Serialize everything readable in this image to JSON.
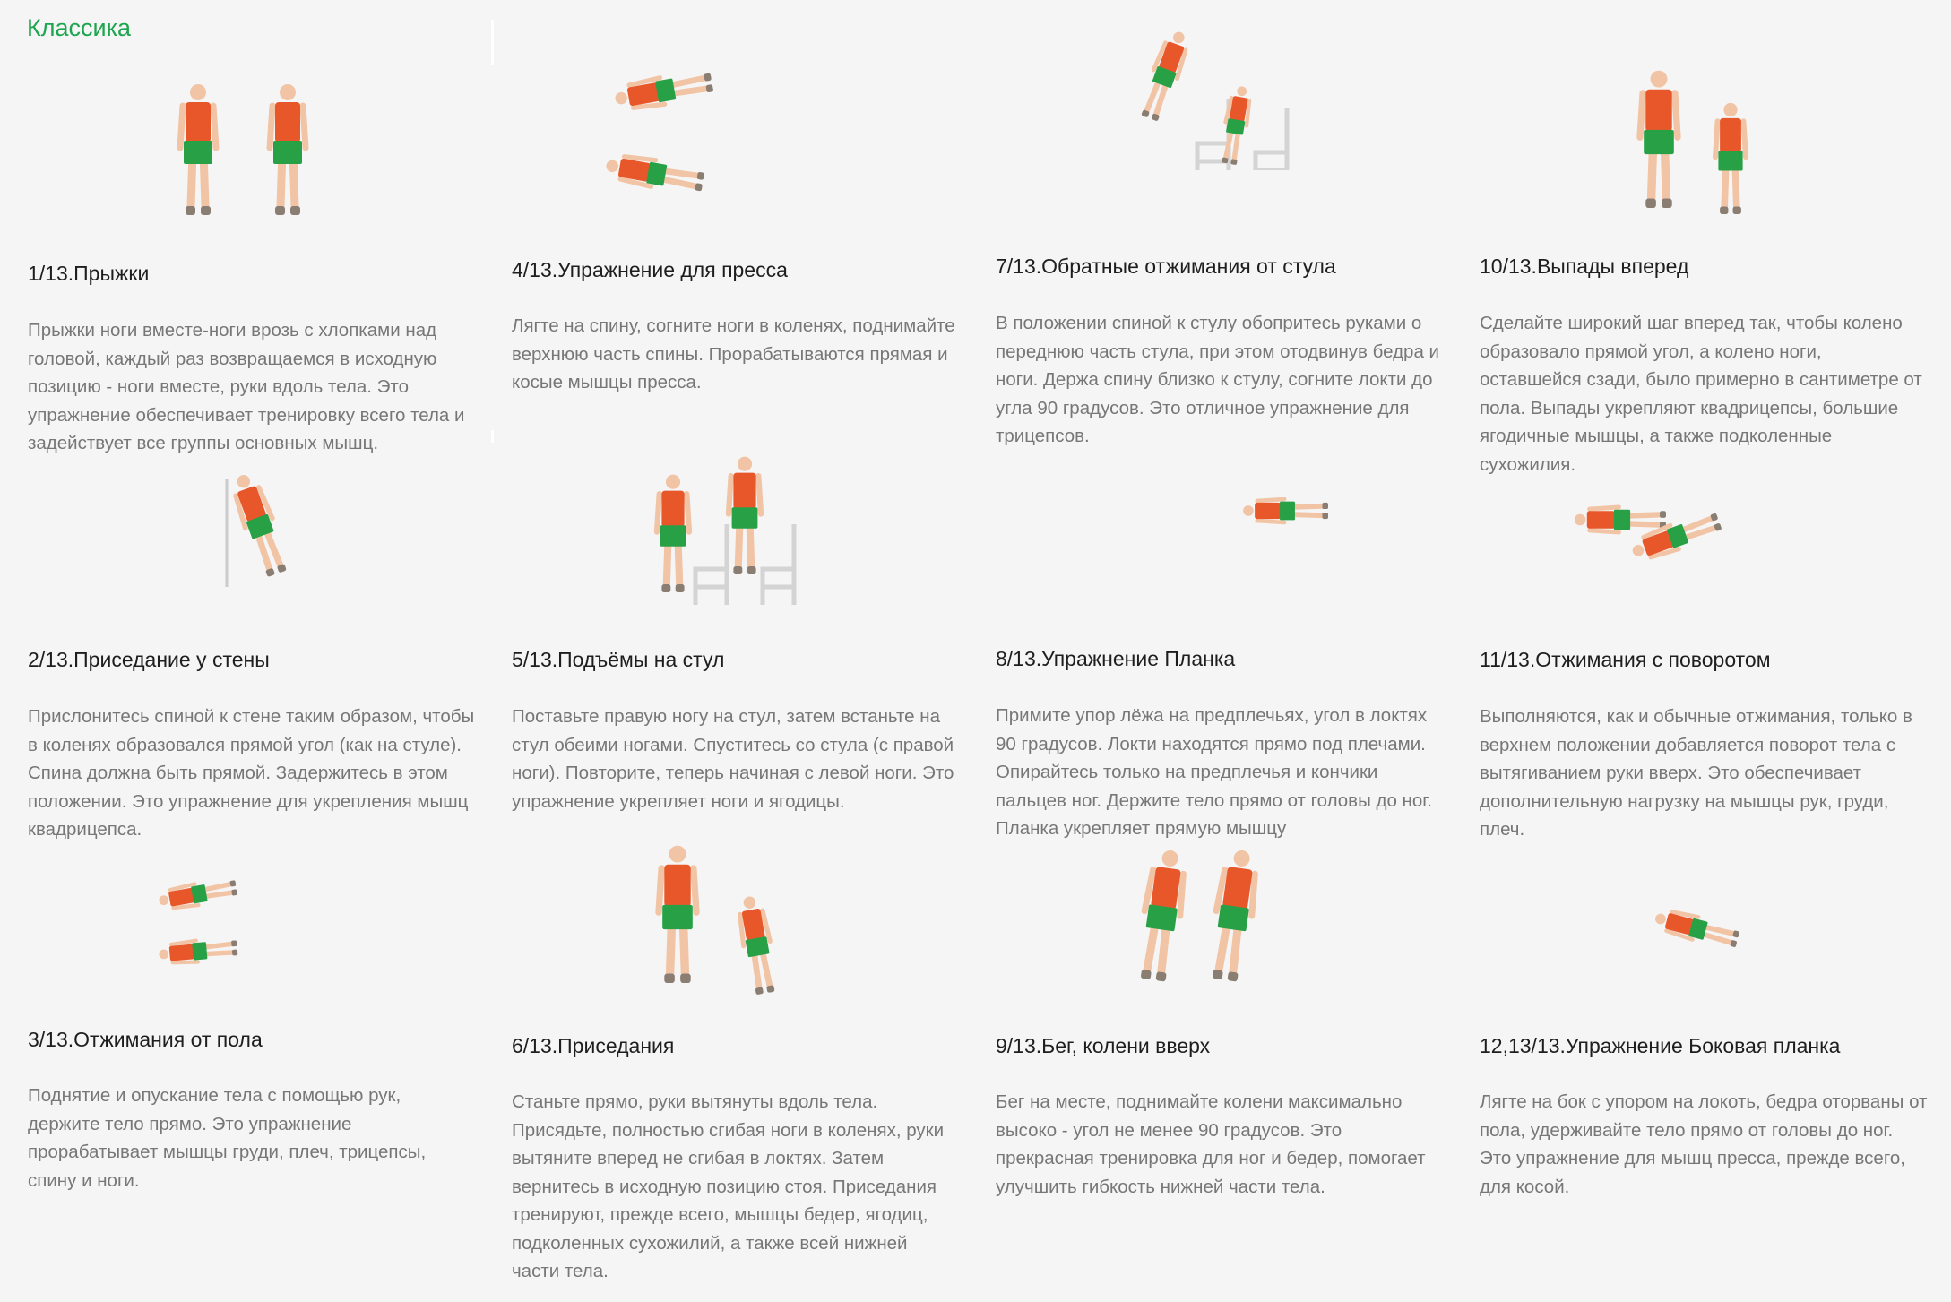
{
  "section": {
    "title": "Классика"
  },
  "colors": {
    "accent": "#1ea54f",
    "shirt": "#e8572a",
    "shorts": "#27a046",
    "skin": "#f2c4a6",
    "shoes": "#8a7d72",
    "chair": "#d4d4d4"
  },
  "exercises": [
    {
      "title": "1/13.Прыжки",
      "description": "Прыжки ноги вместе-ноги врозь с хлопками над головой, каждый раз возвращаемся в исходную позицию - ноги вместе, руки вдоль тела. Это упражнение обеспечивает тренировку всего тела и задействует все группы основных мышц."
    },
    {
      "title": "2/13.Приседание у стены",
      "description": "Прислонитесь спиной к стене таким образом, чтобы в коленях образовался прямой угол (как на стуле). Спина должна быть прямой. Задержитесь в этом положении. Это упражнение для укрепления мышц квадрицепса."
    },
    {
      "title": "3/13.Отжимания от пола",
      "description": "Поднятие и опускание тела с помощью рук, держите тело прямо. Это упражнение прорабатывает мышцы груди, плеч, трицепсы, спину и ноги."
    },
    {
      "title": "4/13.Упражнение для пресса",
      "description": "Лягте на спину, согните ноги в коленях, поднимайте верхнюю часть спины. Прорабатываются прямая и косые мышцы пресса."
    },
    {
      "title": "5/13.Подъёмы на стул",
      "description": "Поставьте правую ногу на стул, затем встаньте на стул обеими ногами. Спуститесь со стула (с правой ноги). Повторите, теперь начиная с левой ноги. Это упражнение укрепляет ноги и ягодицы."
    },
    {
      "title": "6/13.Приседания",
      "description": "Станьте прямо, руки вытянуты вдоль тела. Присядьте, полностью сгибая ноги в коленях, руки вытяните вперед не сгибая в локтях. Затем вернитесь в исходную позицию стоя. Приседания тренируют, прежде всего, мышцы бедер, ягодиц, подколенных сухожилий, а также всей нижней части тела."
    },
    {
      "title": "7/13.Обратные отжимания от стула",
      "description": "В положении спиной к стулу обопритесь руками о переднюю часть стула, при этом отодвинув бедра и ноги. Держа спину близко к стулу, согните локти до угла 90 градусов. Это отличное упражнение для трицепсов."
    },
    {
      "title": "8/13.Упражнение Планка",
      "description": "Примите упор лёжа на предплечьях, угол в локтях 90 градусов. Локти находятся прямо под плечами. Опирайтесь только на предплечья и кончики пальцев ног. Держите тело прямо от головы до ног. Планка укрепляет прямую мышцу"
    },
    {
      "title": "9/13.Бег, колени вверх",
      "description": "Бег на месте, поднимайте колени максимально высоко - угол не менее 90 градусов. Это прекрасная тренировка для ног и бедер, помогает улучшить гибкость нижней части тела."
    },
    {
      "title": "10/13.Выпады вперед",
      "description": "Сделайте широкий шаг вперед так, чтобы колено образовало прямой угол, а колено ноги, оставшейся сзади, было примерно в сантиметре от пола. Выпады укрепляют квадрицепсы, большие ягодичные мышцы, а также подколенные сухожилия."
    },
    {
      "title": "11/13.Отжимания с поворотом",
      "description": "Выполняются, как и обычные отжимания, только в верхнем положении добавляется поворот тела с вытягиванием руки вверх. Это обеспечивает дополнительную нагрузку на мышцы рук, груди, плеч."
    },
    {
      "title": "12,13/13.Упражнение Боковая планка",
      "description": "Лягте на бок с упором на локоть, бедра оторваны от пола, удерживайте тело прямо от головы до ног. Это упражнение для мышц пресса, прежде всего, для косой."
    }
  ]
}
